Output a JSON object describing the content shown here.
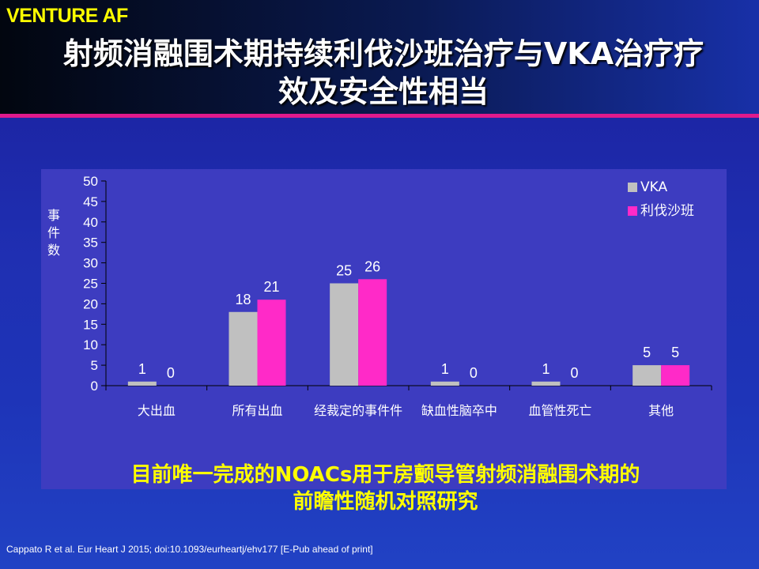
{
  "header": {
    "brand": "VENTURE AF",
    "title_line1": "射频消融围术期持续利伐沙班治疗与VKA治疗疗",
    "title_line2": "效及安全性相当"
  },
  "colors": {
    "vka": "#c0c0c0",
    "rivaroxaban": "#ff2ac8",
    "brand": "#ffff00",
    "accent_rule": "#e01a8c"
  },
  "chart_data": {
    "type": "bar",
    "title": "",
    "xlabel": "",
    "ylabel": "事件数",
    "ylim": [
      0,
      50
    ],
    "yticks": [
      0,
      5,
      10,
      15,
      20,
      25,
      30,
      35,
      40,
      45,
      50
    ],
    "categories": [
      "大出血",
      "所有出血",
      "经裁定的事件件",
      "缺血性脑卒中",
      "血管性死亡",
      "其他"
    ],
    "series": [
      {
        "name": "VKA",
        "values": [
          1,
          18,
          25,
          1,
          1,
          5
        ]
      },
      {
        "name": "利伐沙班",
        "values": [
          0,
          21,
          26,
          0,
          0,
          5
        ]
      }
    ],
    "legend": "top-right",
    "grid": false
  },
  "subtitle": {
    "line1": "目前唯一完成的NOACs用于房颤导管射频消融围术期的",
    "line2": "前瞻性随机对照研究"
  },
  "citation": "Cappato R et al. Eur Heart J 2015; doi:10.1093/eurheartj/ehv177  [E-Pub ahead of print]"
}
